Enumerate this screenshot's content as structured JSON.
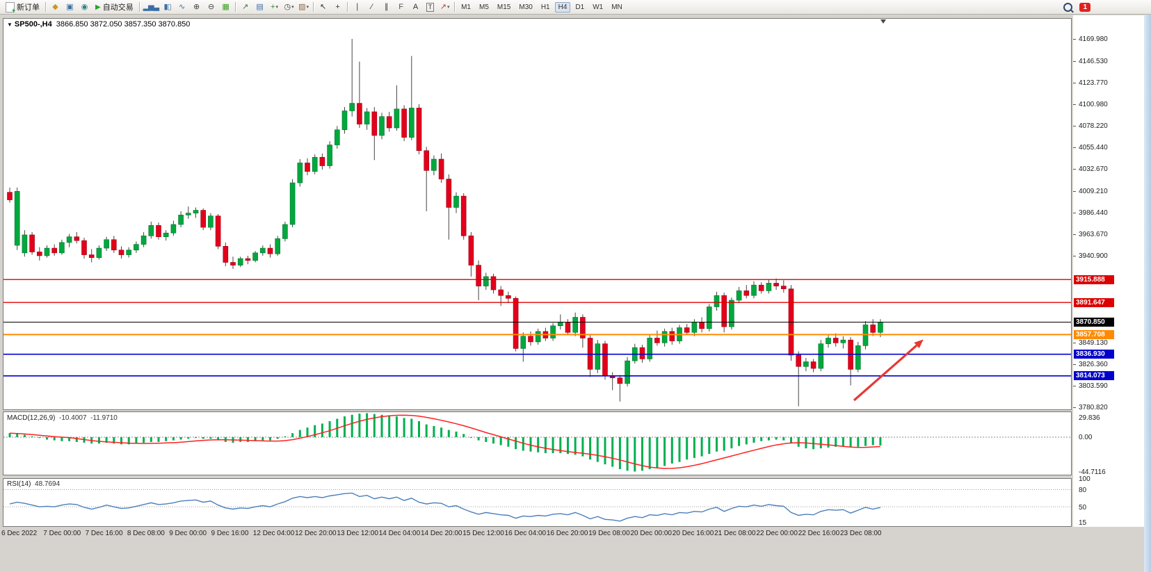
{
  "toolbar": {
    "new_order_label": "新订单",
    "autotrading_label": "自动交易",
    "notification_count": "1",
    "timeframes": [
      "M1",
      "M5",
      "M15",
      "M30",
      "H1",
      "H4",
      "D1",
      "W1",
      "MN"
    ],
    "active_timeframe": "H4",
    "items": [
      {
        "type": "button",
        "name": "new-order-button",
        "icon": "new-order-icon",
        "label_key": "new_order_label"
      },
      {
        "type": "sep"
      },
      {
        "type": "icon",
        "name": "new-chart-icon",
        "glyph": "◆",
        "color": "#c9991f"
      },
      {
        "type": "icon",
        "name": "profiles-icon",
        "glyph": "▣",
        "color": "#3b6ea5"
      },
      {
        "type": "icon",
        "name": "metaeditor-icon",
        "glyph": "◉",
        "color": "#2f7f7f"
      },
      {
        "type": "button",
        "name": "autotrading-button",
        "icon": "autotrading-play-icon",
        "label_key": "autotrading_label"
      },
      {
        "type": "sep"
      },
      {
        "type": "icon",
        "name": "bar-chart-icon",
        "glyph": "▂▅▃",
        "color": "#3b6ea5",
        "mini": true
      },
      {
        "type": "icon",
        "name": "candlestick-chart-icon",
        "glyph": "▮▯",
        "color": "#3b6ea5",
        "mini": true
      },
      {
        "type": "icon",
        "name": "line-chart-icon",
        "glyph": "∿",
        "color": "#3b6ea5"
      },
      {
        "type": "icon",
        "name": "zoom-in-icon",
        "glyph": "⊕",
        "color": "#444"
      },
      {
        "type": "icon",
        "name": "zoom-out-icon",
        "glyph": "⊖",
        "color": "#444"
      },
      {
        "type": "icon",
        "name": "tile-windows-icon",
        "glyph": "▦",
        "color": "#3a9d23"
      },
      {
        "type": "sep"
      },
      {
        "type": "icon",
        "name": "indicators-icon",
        "glyph": "↗",
        "color": "#2e7d32"
      },
      {
        "type": "icon",
        "name": "objects-list-icon",
        "glyph": "▤",
        "color": "#3b6ea5"
      },
      {
        "type": "icon",
        "name": "add-indicator-icon",
        "glyph": "+",
        "color": "#2e8b2e",
        "caret": true
      },
      {
        "type": "icon",
        "name": "periods-icon",
        "glyph": "◷",
        "color": "#444",
        "caret": true
      },
      {
        "type": "icon",
        "name": "templates-icon",
        "glyph": "▨",
        "color": "#8a6b43",
        "caret": true
      },
      {
        "type": "sep"
      },
      {
        "type": "icon",
        "name": "cursor-icon",
        "glyph": "↖",
        "color": "#333"
      },
      {
        "type": "icon",
        "name": "crosshair-icon",
        "glyph": "+",
        "color": "#333"
      },
      {
        "type": "sep"
      },
      {
        "type": "icon",
        "name": "vertical-line-icon",
        "glyph": "∣",
        "color": "#333"
      },
      {
        "type": "icon",
        "name": "trendline-icon",
        "glyph": "∕",
        "color": "#333"
      },
      {
        "type": "icon",
        "name": "channel-icon",
        "glyph": "∥",
        "color": "#333"
      },
      {
        "type": "icon",
        "name": "fibonacci-icon",
        "glyph": "F",
        "color": "#555"
      },
      {
        "type": "icon",
        "name": "text-icon",
        "glyph": "A",
        "color": "#333"
      },
      {
        "type": "icon",
        "name": "text-label-icon",
        "glyph": "T",
        "color": "#333",
        "boxed": true
      },
      {
        "type": "icon",
        "name": "arrows-icon",
        "glyph": "↗",
        "color": "#c0392b",
        "caret": true
      },
      {
        "type": "sep"
      }
    ]
  },
  "chart": {
    "symbol_title": "SP500-,H4",
    "ohlc": "3866.850 3872.050 3857.350 3870.850"
  },
  "indicators": {
    "macd": {
      "title": "MACD(12,26,9)",
      "value_main": "-10.4007",
      "value_signal": "-11.9710",
      "scale_max": "29.836",
      "scale_zero": "0.00",
      "scale_min": "-44.7116"
    },
    "rsi": {
      "title": "RSI(14)",
      "value": "48.7694",
      "scale": [
        "100",
        "80",
        "50",
        "15"
      ],
      "level_lines": [
        80,
        50
      ]
    }
  },
  "price_axis": {
    "ticks": [
      "4169.980",
      "4146.530",
      "4123.770",
      "4100.980",
      "4078.220",
      "4055.440",
      "4032.670",
      "4009.210",
      "3986.440",
      "3963.670",
      "3940.900",
      "3849.130",
      "3826.360",
      "3803.590",
      "3780.820"
    ]
  },
  "chart_data": {
    "type": "candlestick",
    "symbol": "SP500-",
    "timeframe": "H4",
    "title": "SP500-,H4 3866.850 3872.050 3857.350 3870.850",
    "visible_price_range": [
      3778,
      4192
    ],
    "levels": [
      {
        "price": 3915.888,
        "label": "3915.888",
        "color": "#dd0000",
        "width": 1.4
      },
      {
        "price": 3891.647,
        "label": "3891.647",
        "color": "#dd0000",
        "width": 1.4
      },
      {
        "price": 3870.85,
        "label": "3870.850",
        "color": "#000000",
        "width": 1
      },
      {
        "price": 3857.708,
        "label": "3857.708",
        "color": "#ff8a00",
        "width": 2
      },
      {
        "price": 3836.93,
        "label": "3836.930",
        "color": "#0000cc",
        "width": 1.6
      },
      {
        "price": 3814.073,
        "label": "3814.073",
        "color": "#0000cc",
        "width": 1.6
      }
    ],
    "time_labels": [
      "6 Dec 2022",
      "7 Dec 00:00",
      "7 Dec 16:00",
      "8 Dec 08:00",
      "9 Dec 00:00",
      "9 Dec 16:00",
      "12 Dec 04:00",
      "12 Dec 20:00",
      "13 Dec 12:00",
      "14 Dec 04:00",
      "14 Dec 20:00",
      "15 Dec 12:00",
      "16 Dec 04:00",
      "16 Dec 20:00",
      "19 Dec 08:00",
      "20 Dec 00:00",
      "20 Dec 16:00",
      "21 Dec 08:00",
      "22 Dec 00:00",
      "22 Dec 16:00",
      "23 Dec 08:00"
    ],
    "candles": [
      [
        4008,
        4013,
        3997,
        4000
      ],
      [
        3952,
        4013,
        3947,
        4009
      ],
      [
        3944,
        3968,
        3940,
        3963
      ],
      [
        3963,
        3966,
        3942,
        3945
      ],
      [
        3945,
        3950,
        3936,
        3941
      ],
      [
        3941,
        3952,
        3939,
        3949
      ],
      [
        3949,
        3953,
        3941,
        3944
      ],
      [
        3944,
        3958,
        3942,
        3955
      ],
      [
        3955,
        3964,
        3950,
        3961
      ],
      [
        3961,
        3966,
        3954,
        3957
      ],
      [
        3957,
        3960,
        3938,
        3942
      ],
      [
        3942,
        3948,
        3934,
        3939
      ],
      [
        3939,
        3952,
        3937,
        3949
      ],
      [
        3949,
        3961,
        3946,
        3958
      ],
      [
        3958,
        3962,
        3944,
        3947
      ],
      [
        3947,
        3951,
        3938,
        3942
      ],
      [
        3942,
        3950,
        3939,
        3947
      ],
      [
        3947,
        3956,
        3944,
        3953
      ],
      [
        3953,
        3966,
        3950,
        3962
      ],
      [
        3962,
        3977,
        3959,
        3973
      ],
      [
        3973,
        3976,
        3958,
        3961
      ],
      [
        3961,
        3968,
        3957,
        3965
      ],
      [
        3965,
        3978,
        3962,
        3974
      ],
      [
        3974,
        3988,
        3971,
        3984
      ],
      [
        3984,
        3993,
        3980,
        3986
      ],
      [
        3986,
        3992,
        3981,
        3989
      ],
      [
        3989,
        3991,
        3968,
        3971
      ],
      [
        3971,
        3986,
        3968,
        3983
      ],
      [
        3983,
        3985,
        3948,
        3951
      ],
      [
        3951,
        3955,
        3930,
        3934
      ],
      [
        3934,
        3940,
        3927,
        3931
      ],
      [
        3931,
        3940,
        3929,
        3938
      ],
      [
        3938,
        3941,
        3932,
        3936
      ],
      [
        3936,
        3946,
        3934,
        3944
      ],
      [
        3944,
        3952,
        3941,
        3949
      ],
      [
        3949,
        3953,
        3939,
        3943
      ],
      [
        3943,
        3962,
        3941,
        3959
      ],
      [
        3959,
        3977,
        3956,
        3974
      ],
      [
        3974,
        4022,
        3971,
        4018
      ],
      [
        4018,
        4043,
        4014,
        4039
      ],
      [
        4039,
        4044,
        4026,
        4030
      ],
      [
        4030,
        4048,
        4027,
        4045
      ],
      [
        4045,
        4049,
        4032,
        4036
      ],
      [
        4036,
        4062,
        4033,
        4058
      ],
      [
        4058,
        4078,
        4054,
        4074
      ],
      [
        4074,
        4098,
        4070,
        4094
      ],
      [
        4094,
        4170,
        4088,
        4102
      ],
      [
        4102,
        4146,
        4076,
        4080
      ],
      [
        4080,
        4097,
        4074,
        4093
      ],
      [
        4093,
        4098,
        4042,
        4068
      ],
      [
        4068,
        4092,
        4064,
        4088
      ],
      [
        4088,
        4093,
        4072,
        4076
      ],
      [
        4076,
        4121,
        4073,
        4096
      ],
      [
        4096,
        4100,
        4062,
        4066
      ],
      [
        4066,
        4152,
        4063,
        4097
      ],
      [
        4097,
        4101,
        4048,
        4052
      ],
      [
        4052,
        4056,
        3988,
        4031
      ],
      [
        4031,
        4047,
        4026,
        4043
      ],
      [
        4043,
        4049,
        4018,
        4022
      ],
      [
        4022,
        4027,
        3958,
        3992
      ],
      [
        3992,
        4008,
        3986,
        4004
      ],
      [
        4004,
        4007,
        3958,
        3962
      ],
      [
        3962,
        3966,
        3919,
        3931
      ],
      [
        3931,
        3936,
        3894,
        3909
      ],
      [
        3909,
        3923,
        3905,
        3919
      ],
      [
        3919,
        3922,
        3901,
        3905
      ],
      [
        3905,
        3909,
        3888,
        3899
      ],
      [
        3899,
        3903,
        3891,
        3896
      ],
      [
        3896,
        3898,
        3840,
        3843
      ],
      [
        3843,
        3860,
        3829,
        3856
      ],
      [
        3856,
        3861,
        3846,
        3850
      ],
      [
        3850,
        3864,
        3847,
        3861
      ],
      [
        3861,
        3865,
        3851,
        3854
      ],
      [
        3854,
        3870,
        3851,
        3867
      ],
      [
        3867,
        3879,
        3863,
        3871
      ],
      [
        3871,
        3874,
        3857,
        3860
      ],
      [
        3860,
        3881,
        3856,
        3876
      ],
      [
        3876,
        3879,
        3844,
        3854
      ],
      [
        3854,
        3858,
        3813,
        3821
      ],
      [
        3821,
        3852,
        3817,
        3848
      ],
      [
        3848,
        3851,
        3810,
        3814
      ],
      [
        3814,
        3818,
        3799,
        3812
      ],
      [
        3812,
        3815,
        3787,
        3806
      ],
      [
        3806,
        3834,
        3803,
        3830
      ],
      [
        3830,
        3848,
        3827,
        3844
      ],
      [
        3844,
        3847,
        3828,
        3832
      ],
      [
        3832,
        3858,
        3829,
        3854
      ],
      [
        3854,
        3862,
        3846,
        3849
      ],
      [
        3849,
        3864,
        3845,
        3861
      ],
      [
        3861,
        3865,
        3847,
        3851
      ],
      [
        3851,
        3868,
        3848,
        3865
      ],
      [
        3865,
        3869,
        3857,
        3860
      ],
      [
        3860,
        3874,
        3856,
        3871
      ],
      [
        3871,
        3876,
        3860,
        3864
      ],
      [
        3864,
        3890,
        3861,
        3887
      ],
      [
        3887,
        3903,
        3883,
        3899
      ],
      [
        3899,
        3902,
        3860,
        3866
      ],
      [
        3866,
        3897,
        3863,
        3894
      ],
      [
        3894,
        3908,
        3891,
        3904
      ],
      [
        3904,
        3910,
        3896,
        3899
      ],
      [
        3899,
        3914,
        3896,
        3910
      ],
      [
        3910,
        3913,
        3901,
        3904
      ],
      [
        3904,
        3916,
        3901,
        3912
      ],
      [
        3912,
        3917,
        3905,
        3909
      ],
      [
        3909,
        3915,
        3902,
        3906
      ],
      [
        3906,
        3910,
        3830,
        3836
      ],
      [
        3836,
        3840,
        3782,
        3824
      ],
      [
        3824,
        3833,
        3819,
        3829
      ],
      [
        3829,
        3832,
        3818,
        3822
      ],
      [
        3822,
        3852,
        3819,
        3848
      ],
      [
        3848,
        3858,
        3844,
        3854
      ],
      [
        3854,
        3859,
        3845,
        3849
      ],
      [
        3849,
        3856,
        3843,
        3852
      ],
      [
        3852,
        3855,
        3804,
        3821
      ],
      [
        3821,
        3850,
        3818,
        3846
      ],
      [
        3846,
        3872,
        3842,
        3868
      ],
      [
        3868,
        3874,
        3856,
        3860
      ],
      [
        3860,
        3874,
        3855,
        3870.85
      ]
    ],
    "macd_histogram": [
      5,
      4,
      3,
      1,
      -1,
      -3,
      -4,
      -5,
      -5,
      -6,
      -7,
      -8,
      -8,
      -7,
      -8,
      -9,
      -9,
      -8,
      -7,
      -6,
      -6,
      -5,
      -4,
      -3,
      -2,
      -1,
      -2,
      -2,
      -4,
      -6,
      -7,
      -6,
      -6,
      -5,
      -4,
      -4,
      -2,
      1,
      5,
      9,
      12,
      15,
      17,
      20,
      23,
      26,
      28,
      29.5,
      30,
      29,
      28,
      27,
      26,
      24,
      23,
      20,
      16,
      14,
      12,
      9,
      7,
      4,
      0,
      -4,
      -6,
      -8,
      -10,
      -12,
      -15,
      -17,
      -18,
      -19,
      -20,
      -20,
      -20,
      -21,
      -22,
      -24,
      -28,
      -31,
      -34,
      -37,
      -40,
      -42,
      -43,
      -42,
      -40,
      -38,
      -36,
      -33,
      -31,
      -28,
      -26,
      -24,
      -21,
      -18,
      -17,
      -14,
      -11,
      -9,
      -7,
      -5,
      -4,
      -3,
      -4,
      -8,
      -12,
      -14,
      -15,
      -14,
      -13,
      -12,
      -11,
      -12,
      -12,
      -11,
      -10,
      -10.4
    ],
    "rsi_values": [
      55,
      58,
      56,
      53,
      50,
      51,
      50,
      53,
      55,
      54,
      49,
      46,
      49,
      53,
      50,
      47,
      48,
      51,
      54,
      57,
      54,
      55,
      57,
      60,
      61,
      62,
      58,
      60,
      53,
      48,
      46,
      48,
      47,
      50,
      52,
      50,
      55,
      59,
      65,
      68,
      66,
      68,
      66,
      69,
      71,
      73,
      74,
      68,
      70,
      64,
      67,
      64,
      67,
      61,
      65,
      58,
      55,
      57,
      56,
      50,
      52,
      46,
      41,
      37,
      40,
      38,
      36,
      35,
      30,
      34,
      33,
      35,
      34,
      37,
      38,
      36,
      40,
      35,
      29,
      33,
      28,
      27,
      25,
      30,
      33,
      31,
      36,
      35,
      38,
      36,
      40,
      39,
      42,
      41,
      46,
      49,
      42,
      47,
      51,
      50,
      53,
      51,
      54,
      52,
      51,
      40,
      35,
      37,
      36,
      42,
      45,
      44,
      45,
      39,
      44,
      49,
      46,
      48.8
    ]
  },
  "annotations": {
    "arrow": {
      "from": [
        1228,
        576
      ],
      "to": [
        1318,
        497
      ],
      "color": "#e53935"
    }
  },
  "colors": {
    "candle_up": "#00a83e",
    "candle_up_border": "#00722a",
    "candle_down": "#e3001b",
    "candle_down_border": "#9c0013",
    "wick": "#444444",
    "macd_hist": "#00b050",
    "macd_signal": "#ff2020",
    "rsi_line": "#4a7ebb"
  }
}
